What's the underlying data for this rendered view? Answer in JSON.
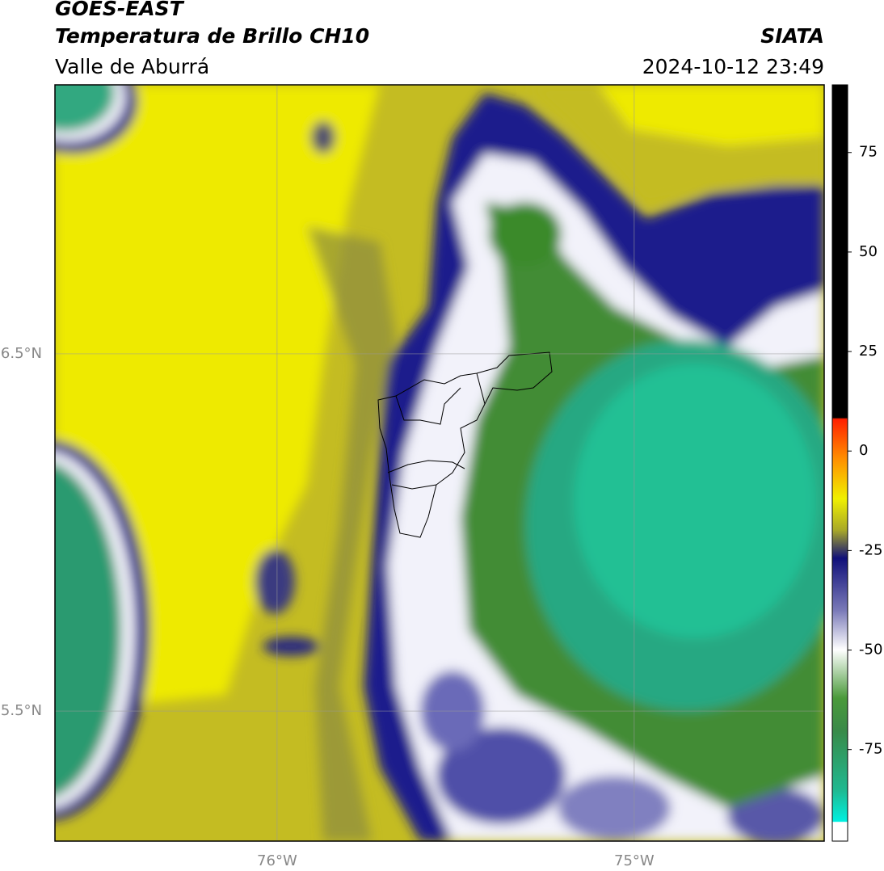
{
  "header": {
    "title": "GOES-EAST",
    "subtitle": "Temperatura de Brillo CH10",
    "region": "Valle de Aburrá",
    "source": "SIATA",
    "datetime": "2024-10-12 23:49"
  },
  "map": {
    "xlim": [
      -76.622,
      -74.468
    ],
    "ylim": [
      5.136,
      7.253
    ],
    "xticks": [
      {
        "value": -76,
        "label": "76°W"
      },
      {
        "value": -75,
        "label": "75°W"
      }
    ],
    "yticks": [
      {
        "value": 6.5,
        "label": "6.5°N"
      },
      {
        "value": 5.5,
        "label": "5.5°N"
      }
    ],
    "grid": true
  },
  "colorbar": {
    "lim": [
      -98,
      92
    ],
    "ticks": [
      75,
      50,
      25,
      0,
      -25,
      -50,
      -75
    ]
  }
}
